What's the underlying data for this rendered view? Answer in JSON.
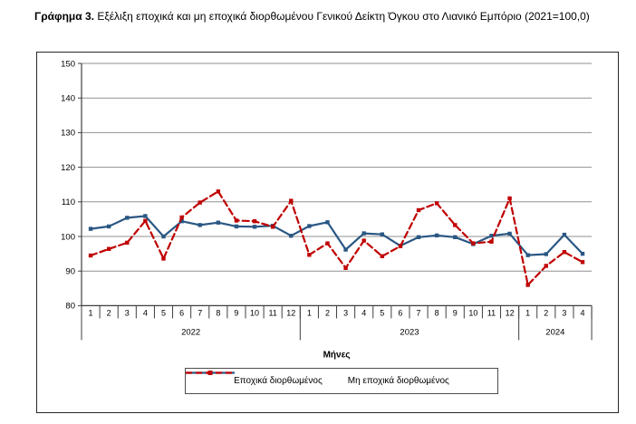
{
  "caption": {
    "label": "Γράφημα 3.",
    "text": " Εξέλιξη εποχικά και μη εποχικά διορθωμένου Γενικού Δείκτη Όγκου στο Λιανικό Εμπόριο (2021=100,0)"
  },
  "chart_data": {
    "type": "line",
    "title": "",
    "xlabel": "Μήνες",
    "ylabel": "",
    "ylim": [
      80,
      150
    ],
    "ytick_step": 10,
    "grid": true,
    "legend_position": "bottom",
    "categories": [
      "1",
      "2",
      "3",
      "4",
      "5",
      "6",
      "7",
      "8",
      "9",
      "10",
      "11",
      "12",
      "1",
      "2",
      "3",
      "4",
      "5",
      "6",
      "7",
      "8",
      "9",
      "10",
      "11",
      "12",
      "1",
      "2",
      "3",
      "4"
    ],
    "year_groups": [
      {
        "label": "2022",
        "months": 12
      },
      {
        "label": "2023",
        "months": 12
      },
      {
        "label": "2024",
        "months": 4
      }
    ],
    "series": [
      {
        "name": "Εποχικά διορθωμένος",
        "style": "solid",
        "color": "#2a5783",
        "values": [
          102.2,
          102.9,
          105.4,
          105.9,
          100.0,
          104.4,
          103.3,
          104.0,
          102.9,
          102.8,
          103.1,
          100.2,
          103.0,
          104.1,
          96.2,
          100.9,
          100.6,
          97.3,
          99.8,
          100.3,
          99.8,
          97.8,
          100.2,
          100.8,
          94.6,
          94.9,
          100.5,
          95.0
        ]
      },
      {
        "name": "Μη εποχικά διορθωμένος",
        "style": "dashed",
        "color": "#c00000",
        "values": [
          94.5,
          96.4,
          98.2,
          104.5,
          93.6,
          105.5,
          109.8,
          113.0,
          104.6,
          104.4,
          102.8,
          110.3,
          94.7,
          98.0,
          90.9,
          98.8,
          94.3,
          97.2,
          107.6,
          109.6,
          103.3,
          98.0,
          98.5,
          111.0,
          86.0,
          91.5,
          95.5,
          92.6
        ]
      }
    ],
    "colors": {
      "gridline": "#909090",
      "axis": "#3f3f3f",
      "text": "#000000"
    }
  }
}
